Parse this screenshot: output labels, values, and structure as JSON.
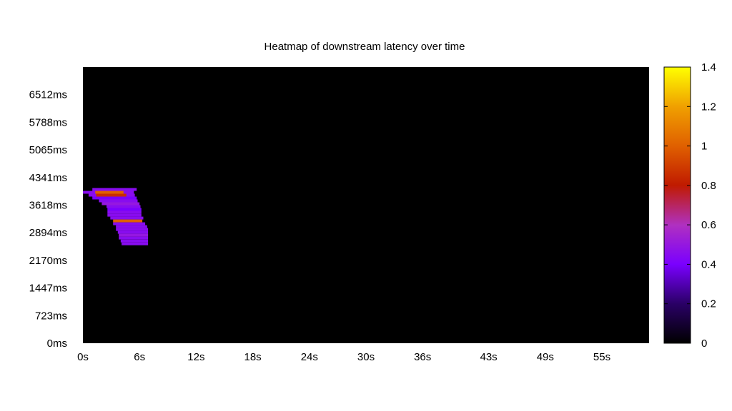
{
  "chart_data": {
    "type": "heatmap",
    "title": "Heatmap of downstream latency over time",
    "xlabel": "",
    "ylabel": "",
    "x_ticks": [
      "0s",
      "6s",
      "12s",
      "18s",
      "24s",
      "30s",
      "36s",
      "43s",
      "49s",
      "55s"
    ],
    "x_tick_values_s": [
      0,
      6,
      12,
      18,
      24,
      30,
      36,
      43,
      49,
      55
    ],
    "xlim_s": [
      0,
      60
    ],
    "y_ticks": [
      "0ms",
      "723ms",
      "1447ms",
      "2170ms",
      "2894ms",
      "3618ms",
      "4341ms",
      "5065ms",
      "5788ms",
      "6512ms"
    ],
    "y_tick_values_ms": [
      0,
      723,
      1447,
      2170,
      2894,
      3618,
      4341,
      5065,
      5788,
      6512
    ],
    "ylim_ms": [
      0,
      7236
    ],
    "colorbar": {
      "ticks": [
        "0",
        "0.2",
        "0.4",
        "0.6",
        "0.8",
        "1",
        "1.2",
        "1.4"
      ],
      "tick_values": [
        0,
        0.2,
        0.4,
        0.6,
        0.8,
        1.0,
        1.2,
        1.4
      ],
      "range": [
        0,
        1.4
      ],
      "palette": [
        "#000000",
        "#2a0066",
        "#7a00ff",
        "#b030c0",
        "#c01a00",
        "#e06000",
        "#f0a000",
        "#ffff00"
      ]
    },
    "background_color": "#000000",
    "grid": false,
    "cells": [
      {
        "t0": 1.0,
        "t1": 5.7,
        "ms": 4030,
        "value": 0.45
      },
      {
        "t0": 0.0,
        "t1": 5.4,
        "ms": 3955,
        "value": 0.45
      },
      {
        "t0": 1.3,
        "t1": 4.3,
        "ms": 3955,
        "value": 1.0
      },
      {
        "t0": 0.6,
        "t1": 5.5,
        "ms": 3880,
        "value": 0.45
      },
      {
        "t0": 1.4,
        "t1": 4.6,
        "ms": 3880,
        "value": 0.85
      },
      {
        "t0": 1.0,
        "t1": 5.7,
        "ms": 3805,
        "value": 0.4
      },
      {
        "t0": 1.7,
        "t1": 5.8,
        "ms": 3730,
        "value": 0.45
      },
      {
        "t0": 2.0,
        "t1": 6.0,
        "ms": 3655,
        "value": 0.5
      },
      {
        "t0": 2.5,
        "t1": 6.1,
        "ms": 3580,
        "value": 0.45
      },
      {
        "t0": 2.6,
        "t1": 6.2,
        "ms": 3505,
        "value": 0.4
      },
      {
        "t0": 2.6,
        "t1": 6.2,
        "ms": 3430,
        "value": 0.45
      },
      {
        "t0": 2.6,
        "t1": 6.2,
        "ms": 3355,
        "value": 0.45
      },
      {
        "t0": 2.9,
        "t1": 6.4,
        "ms": 3280,
        "value": 0.45
      },
      {
        "t0": 3.2,
        "t1": 6.3,
        "ms": 3205,
        "value": 1.0
      },
      {
        "t0": 3.2,
        "t1": 6.6,
        "ms": 3130,
        "value": 0.45
      },
      {
        "t0": 3.5,
        "t1": 6.8,
        "ms": 3055,
        "value": 0.45
      },
      {
        "t0": 3.5,
        "t1": 6.9,
        "ms": 2980,
        "value": 0.45
      },
      {
        "t0": 3.7,
        "t1": 6.9,
        "ms": 2905,
        "value": 0.45
      },
      {
        "t0": 3.8,
        "t1": 6.9,
        "ms": 2830,
        "value": 0.5
      },
      {
        "t0": 3.8,
        "t1": 6.9,
        "ms": 2755,
        "value": 0.45
      },
      {
        "t0": 4.0,
        "t1": 6.9,
        "ms": 2680,
        "value": 0.45
      },
      {
        "t0": 4.1,
        "t1": 6.9,
        "ms": 2605,
        "value": 0.45
      }
    ]
  }
}
